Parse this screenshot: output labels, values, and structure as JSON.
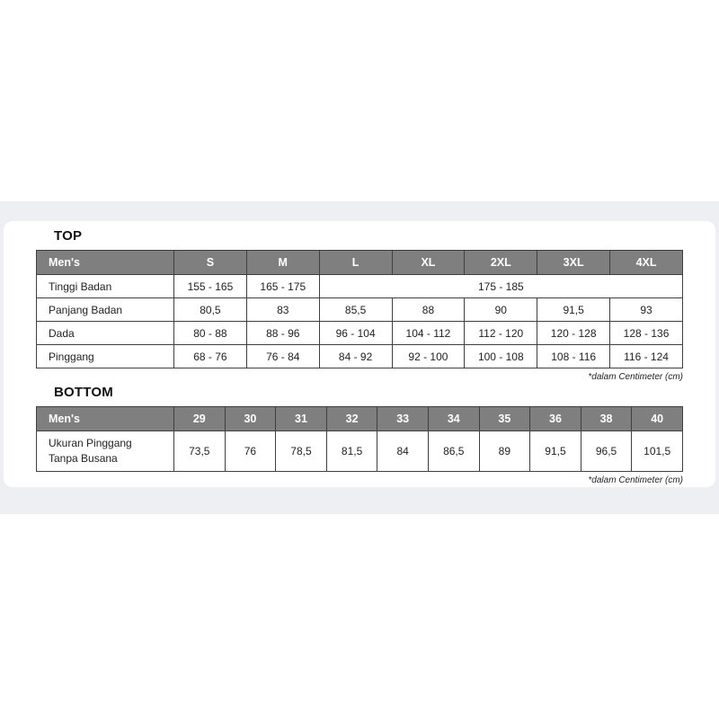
{
  "colors": {
    "band_background": "#edeff2",
    "card_background": "#ffffff",
    "table_header_background": "#7f7f7f",
    "table_header_text": "#ffffff",
    "table_border": "#3f3f3f"
  },
  "tables": {
    "top": {
      "heading": "TOP",
      "header": [
        "Men's",
        "S",
        "M",
        "L",
        "XL",
        "2XL",
        "3XL",
        "4XL"
      ],
      "rows": [
        {
          "label": "Tinggi Badan",
          "cells": [
            {
              "t": "155 - 165"
            },
            {
              "t": "165 - 175"
            },
            {
              "t": "175 - 185",
              "span": 5
            }
          ]
        },
        {
          "label": "Panjang Badan",
          "cells": [
            {
              "t": "80,5"
            },
            {
              "t": "83"
            },
            {
              "t": "85,5"
            },
            {
              "t": "88"
            },
            {
              "t": "90"
            },
            {
              "t": "91,5"
            },
            {
              "t": "93"
            }
          ]
        },
        {
          "label": "Dada",
          "cells": [
            {
              "t": "80 - 88"
            },
            {
              "t": "88 - 96"
            },
            {
              "t": "96 - 104"
            },
            {
              "t": "104 - 112"
            },
            {
              "t": "112 - 120"
            },
            {
              "t": "120 - 128"
            },
            {
              "t": "128 - 136"
            }
          ]
        },
        {
          "label": "Pinggang",
          "cells": [
            {
              "t": "68 - 76"
            },
            {
              "t": "76 - 84"
            },
            {
              "t": "84 - 92"
            },
            {
              "t": "92 - 100"
            },
            {
              "t": "100 - 108"
            },
            {
              "t": "108 - 116"
            },
            {
              "t": "116 - 124"
            }
          ]
        }
      ],
      "footnote": "*dalam Centimeter (cm)"
    },
    "bottom": {
      "heading": "BOTTOM",
      "header": [
        "Men's",
        "29",
        "30",
        "31",
        "32",
        "33",
        "34",
        "35",
        "36",
        "38",
        "40"
      ],
      "rows": [
        {
          "label": "Ukuran Pinggang\nTanpa Busana",
          "cells": [
            {
              "t": "73,5"
            },
            {
              "t": "76"
            },
            {
              "t": "78,5"
            },
            {
              "t": "81,5"
            },
            {
              "t": "84"
            },
            {
              "t": "86,5"
            },
            {
              "t": "89"
            },
            {
              "t": "91,5"
            },
            {
              "t": "96,5"
            },
            {
              "t": "101,5"
            }
          ]
        }
      ],
      "footnote": "*dalam Centimeter (cm)"
    }
  }
}
